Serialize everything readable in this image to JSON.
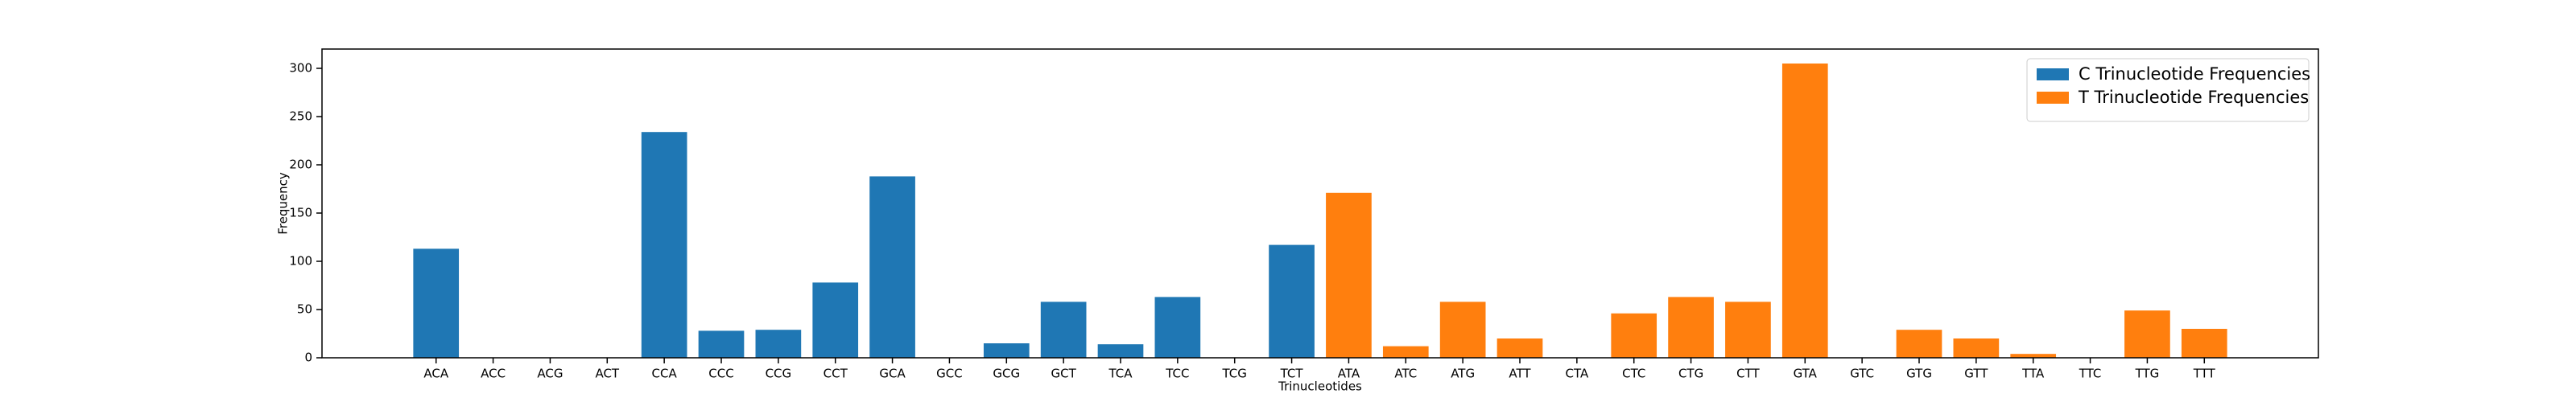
{
  "chart_data": {
    "type": "bar",
    "x_label": "Trinucleotides",
    "y_label": "Frequency",
    "categories": [
      "ACA",
      "ACC",
      "ACG",
      "ACT",
      "CCA",
      "CCC",
      "CCG",
      "CCT",
      "GCA",
      "GCC",
      "GCG",
      "GCT",
      "TCA",
      "TCC",
      "TCG",
      "TCT",
      "ATA",
      "ATC",
      "ATG",
      "ATT",
      "CTA",
      "CTC",
      "CTG",
      "CTT",
      "GTA",
      "GTC",
      "GTG",
      "GTT",
      "TTA",
      "TTC",
      "TTG",
      "TTT"
    ],
    "series": [
      {
        "name": "C Trinucleotide Frequencies",
        "color": "#1f77b4",
        "values": [
          113,
          0,
          0,
          0,
          234,
          28,
          29,
          78,
          188,
          0,
          15,
          58,
          14,
          63,
          0,
          117,
          null,
          null,
          null,
          null,
          null,
          null,
          null,
          null,
          null,
          null,
          null,
          null,
          null,
          null,
          null,
          null
        ]
      },
      {
        "name": "T Trinucleotide Frequencies",
        "color": "#ff7f0e",
        "values": [
          null,
          null,
          null,
          null,
          null,
          null,
          null,
          null,
          null,
          null,
          null,
          null,
          null,
          null,
          null,
          null,
          171,
          12,
          58,
          20,
          0,
          46,
          63,
          58,
          305,
          0,
          29,
          20,
          4,
          0,
          49,
          30
        ]
      }
    ],
    "ylim": [
      0,
      320
    ],
    "yticks": [
      0,
      50,
      100,
      150,
      200,
      250,
      300
    ],
    "grid": false,
    "legend": "upper right"
  }
}
